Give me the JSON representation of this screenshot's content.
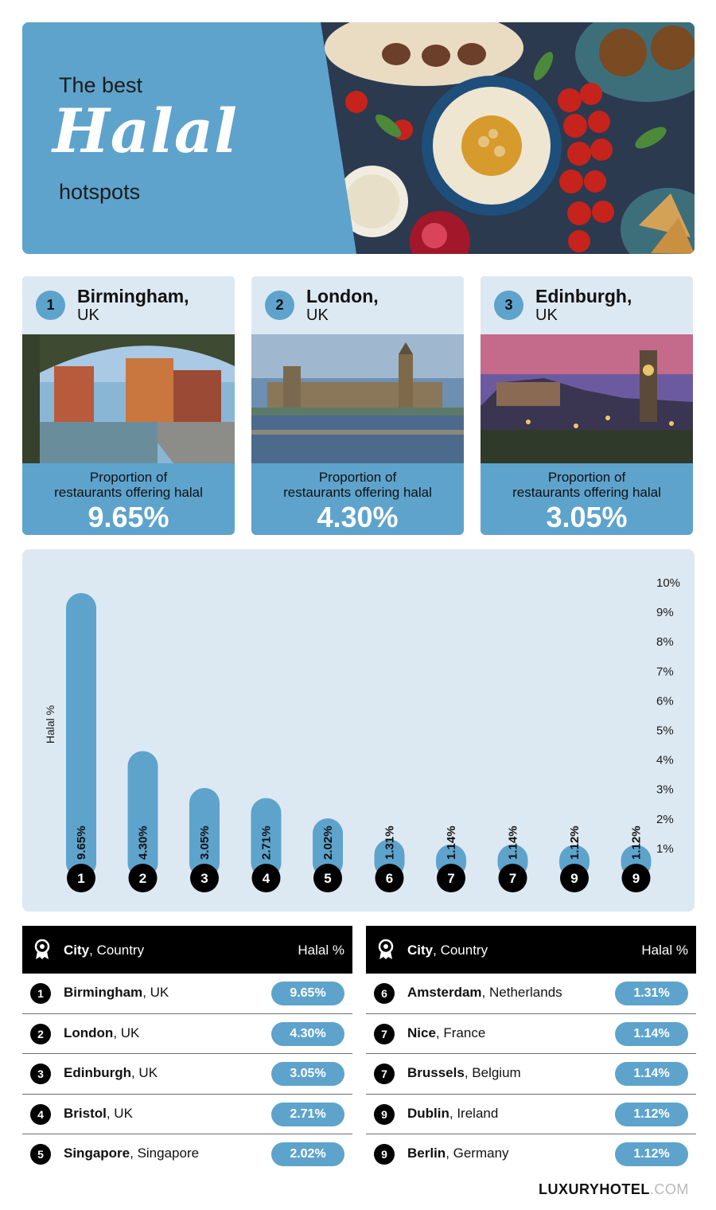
{
  "hero": {
    "line1": "The best",
    "script": "Halal",
    "line2": "hotspots"
  },
  "podium": [
    {
      "rank": "1",
      "city": "Birmingham,",
      "country": "UK",
      "caption1": "Proportion of",
      "caption2": "restaurants offering halal",
      "value": "9.65%"
    },
    {
      "rank": "2",
      "city": "London,",
      "country": "UK",
      "caption1": "Proportion of",
      "caption2": "restaurants offering halal",
      "value": "4.30%"
    },
    {
      "rank": "3",
      "city": "Edinburgh,",
      "country": "UK",
      "caption1": "Proportion of",
      "caption2": "restaurants offering halal",
      "value": "3.05%"
    }
  ],
  "chart_data": {
    "type": "bar",
    "ylabel": "Halal %",
    "ylim": [
      0,
      10
    ],
    "y_ticks": [
      "1%",
      "2%",
      "3%",
      "4%",
      "5%",
      "6%",
      "7%",
      "8%",
      "9%",
      "10%"
    ],
    "categories": [
      "1",
      "2",
      "3",
      "4",
      "5",
      "6",
      "7",
      "7",
      "9",
      "9"
    ],
    "values": [
      9.65,
      4.3,
      3.05,
      2.71,
      2.02,
      1.31,
      1.14,
      1.14,
      1.12,
      1.12
    ],
    "value_labels": [
      "9.65%",
      "4.30%",
      "3.05%",
      "2.71%",
      "2.02%",
      "1.31%",
      "1.14%",
      "1.14%",
      "1.12%",
      "1.12%"
    ],
    "bar_color": "#5ea3cc",
    "axis_position": "right"
  },
  "table_header": {
    "city": "City",
    "country": ", Country",
    "halal": "Halal %"
  },
  "table_left": [
    {
      "rank": "1",
      "city": "Birmingham",
      "country": ", UK",
      "value": "9.65%"
    },
    {
      "rank": "2",
      "city": "London",
      "country": ", UK",
      "value": "4.30%"
    },
    {
      "rank": "3",
      "city": "Edinburgh",
      "country": ", UK",
      "value": "3.05%"
    },
    {
      "rank": "4",
      "city": "Bristol",
      "country": ", UK",
      "value": "2.71%"
    },
    {
      "rank": "5",
      "city": "Singapore",
      "country": ", Singapore",
      "value": "2.02%"
    }
  ],
  "table_right": [
    {
      "rank": "6",
      "city": "Amsterdam",
      "country": ", Netherlands",
      "value": "1.31%"
    },
    {
      "rank": "7",
      "city": "Nice",
      "country": ", France",
      "value": "1.14%"
    },
    {
      "rank": "7",
      "city": "Brussels",
      "country": ", Belgium",
      "value": "1.14%"
    },
    {
      "rank": "9",
      "city": "Dublin",
      "country": ", Ireland",
      "value": "1.12%"
    },
    {
      "rank": "9",
      "city": "Berlin",
      "country": ", Germany",
      "value": "1.12%"
    }
  ],
  "brand": {
    "name": "LUXURYHOTEL",
    "suffix": ".COM"
  },
  "colors": {
    "accent": "#5ea3cc",
    "panel": "#dde9f2",
    "dark": "#000000"
  }
}
